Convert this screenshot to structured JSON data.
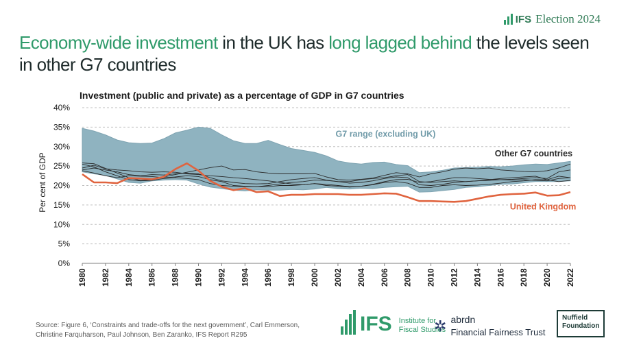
{
  "brand": {
    "name": "IFS",
    "label": "Election 2024"
  },
  "headline": {
    "parts": [
      {
        "text": "Economy-wide investment",
        "highlight": true
      },
      {
        "text": " in the UK has ",
        "highlight": false
      },
      {
        "text": "long lagged behind",
        "highlight": true
      },
      {
        "text": " the levels seen in other G7 countries",
        "highlight": false
      }
    ]
  },
  "chart_data": {
    "type": "area",
    "title": "Investment (public and private) as a percentage of GDP in G7 countries",
    "xlabel": "",
    "ylabel": "Per cent of GDP",
    "ylim": [
      0,
      40
    ],
    "yticks": [
      0,
      5,
      10,
      15,
      20,
      25,
      30,
      35,
      40
    ],
    "ytick_labels": [
      "0%",
      "5%",
      "10%",
      "15%",
      "20%",
      "25%",
      "30%",
      "35%",
      "40%"
    ],
    "x": [
      1980,
      1981,
      1982,
      1983,
      1984,
      1985,
      1986,
      1987,
      1988,
      1989,
      1990,
      1991,
      1992,
      1993,
      1994,
      1995,
      1996,
      1997,
      1998,
      1999,
      2000,
      2001,
      2002,
      2003,
      2004,
      2005,
      2006,
      2007,
      2008,
      2009,
      2010,
      2011,
      2012,
      2013,
      2014,
      2015,
      2016,
      2017,
      2018,
      2019,
      2020,
      2021,
      2022
    ],
    "xticks": [
      1980,
      1982,
      1984,
      1986,
      1988,
      1990,
      1992,
      1994,
      1996,
      1998,
      2000,
      2002,
      2004,
      2006,
      2008,
      2010,
      2012,
      2014,
      2016,
      2018,
      2020,
      2022
    ],
    "grid": true,
    "colors": {
      "range_fill": "#8fb3c0",
      "range_edge": "#7ea3b1",
      "uk": "#e0643f",
      "others": "#2a2a2a",
      "grid": "#bfbfbf"
    },
    "annotations": [
      {
        "text": "G7 range (excluding UK)",
        "x": 2001.8,
        "y": 32.5,
        "color": "#6f9aa8"
      },
      {
        "text": "Other G7 countries",
        "x": 2015.5,
        "y": 27.5,
        "color": "#2a2a2a"
      },
      {
        "text": "United Kingdom",
        "x": 2016.8,
        "y": 13.8,
        "color": "#e0643f"
      }
    ],
    "range": {
      "name": "G7 range (excluding UK)",
      "upper": [
        34.7,
        34.0,
        33.0,
        31.7,
        31.0,
        30.8,
        30.9,
        32.0,
        33.5,
        34.2,
        35.0,
        34.7,
        33.0,
        31.5,
        30.8,
        30.8,
        31.6,
        30.5,
        29.5,
        29.0,
        28.5,
        27.6,
        26.3,
        25.8,
        25.5,
        25.9,
        26.0,
        25.4,
        25.1,
        23.3,
        23.5,
        23.9,
        24.5,
        24.6,
        24.7,
        24.9,
        24.8,
        25.0,
        25.3,
        25.5,
        25.4,
        25.8,
        26.2
      ],
      "lower": [
        23.5,
        23.0,
        22.6,
        21.7,
        20.8,
        20.6,
        21.2,
        21.4,
        21.5,
        21.4,
        20.4,
        19.6,
        19.2,
        18.8,
        18.6,
        18.9,
        18.8,
        18.8,
        19.0,
        18.9,
        19.1,
        19.5,
        19.2,
        19.1,
        19.3,
        19.2,
        19.5,
        19.7,
        19.8,
        18.3,
        18.4,
        18.7,
        19.0,
        19.5,
        19.7,
        20.0,
        20.3,
        20.4,
        20.7,
        21.0,
        21.0,
        21.0,
        21.2
      ]
    },
    "series": [
      {
        "name": "United Kingdom",
        "role": "uk",
        "values": [
          22.9,
          20.8,
          20.8,
          20.6,
          21.9,
          21.8,
          21.6,
          22.2,
          24.2,
          25.7,
          23.8,
          21.2,
          19.7,
          18.8,
          19.3,
          18.3,
          18.5,
          17.3,
          17.6,
          17.6,
          17.8,
          17.8,
          17.8,
          17.6,
          17.6,
          17.8,
          18.0,
          17.9,
          17.0,
          16.0,
          16.0,
          15.9,
          15.8,
          16.0,
          16.6,
          17.2,
          17.6,
          17.8,
          17.9,
          18.2,
          17.4,
          17.5,
          18.3
        ]
      },
      {
        "name": "Other G7 country A",
        "role": "other",
        "values": [
          25.5,
          24.8,
          23.5,
          22.5,
          21.5,
          21.2,
          21.3,
          21.8,
          22.0,
          21.8,
          21.5,
          20.5,
          20.0,
          19.8,
          19.7,
          19.7,
          20.0,
          20.4,
          20.8,
          21.0,
          21.4,
          21.3,
          21.0,
          20.6,
          20.8,
          21.2,
          21.8,
          22.2,
          22.0,
          20.2,
          20.0,
          20.3,
          20.8,
          21.0,
          21.2,
          21.5,
          21.8,
          22.0,
          22.2,
          22.4,
          21.5,
          22.4,
          22.0
        ]
      },
      {
        "name": "Other G7 country B",
        "role": "other",
        "values": [
          24.0,
          24.5,
          24.0,
          23.5,
          22.8,
          22.5,
          22.8,
          22.7,
          23.0,
          23.2,
          23.0,
          22.0,
          21.2,
          20.8,
          20.5,
          20.4,
          20.5,
          21.0,
          21.5,
          21.8,
          22.0,
          21.4,
          21.0,
          21.0,
          21.5,
          21.8,
          22.0,
          22.5,
          22.8,
          21.0,
          20.8,
          21.0,
          21.2,
          21.0,
          21.2,
          21.3,
          21.5,
          21.6,
          21.8,
          22.0,
          21.8,
          23.5,
          24.0
        ]
      },
      {
        "name": "Other G7 country C",
        "role": "other",
        "values": [
          23.8,
          23.2,
          22.5,
          22.0,
          22.5,
          22.4,
          22.3,
          22.0,
          22.2,
          22.5,
          22.3,
          21.5,
          21.0,
          20.0,
          19.8,
          19.7,
          19.7,
          20.0,
          20.0,
          20.2,
          20.5,
          20.0,
          19.8,
          19.6,
          19.8,
          20.2,
          20.8,
          21.0,
          20.6,
          19.5,
          19.5,
          20.0,
          20.2,
          20.0,
          20.1,
          20.3,
          20.6,
          21.0,
          21.2,
          21.5,
          21.5,
          21.0,
          21.3
        ]
      },
      {
        "name": "Other G7 country D",
        "role": "other",
        "values": [
          24.5,
          25.2,
          24.3,
          24.0,
          23.8,
          23.5,
          23.4,
          23.5,
          23.4,
          23.0,
          22.8,
          22.5,
          22.3,
          22.0,
          21.8,
          21.5,
          21.2,
          20.8,
          20.4,
          20.2,
          20.5,
          20.3,
          20.0,
          19.7,
          19.8,
          20.3,
          21.0,
          21.5,
          21.6,
          20.8,
          21.0,
          21.5,
          22.0,
          22.0,
          21.8,
          21.6,
          21.5,
          21.4,
          21.5,
          21.3,
          21.2,
          21.8,
          22.0
        ]
      },
      {
        "name": "Other G7 country E",
        "role": "other",
        "values": [
          25.8,
          25.6,
          24.4,
          23.2,
          22.0,
          21.3,
          21.5,
          22.2,
          22.8,
          23.4,
          24.0,
          24.6,
          25.0,
          24.0,
          24.1,
          23.5,
          23.2,
          23.0,
          23.0,
          23.0,
          23.1,
          22.2,
          21.5,
          21.4,
          21.6,
          21.9,
          22.6,
          23.3,
          23.0,
          22.2,
          23.0,
          23.5,
          24.2,
          24.5,
          24.3,
          24.5,
          24.0,
          23.8,
          23.6,
          23.5,
          23.8,
          24.5,
          25.5
        ]
      }
    ]
  },
  "source": {
    "text": "Source: Figure 6, ‘Constraints and trade-offs for the next government’, Carl Emmerson, Christine Farquharson, Paul Johnson, Ben Zaranko, IFS Report R295"
  },
  "logos": {
    "ifs": {
      "word": "IFS",
      "line1": "Institute for",
      "line2": "Fiscal Studies"
    },
    "abrdn": {
      "line1": "abrdn",
      "line2": "Financial Fairness Trust"
    },
    "nuffield": {
      "line1": "Nuffield",
      "line2": "Foundation"
    }
  }
}
